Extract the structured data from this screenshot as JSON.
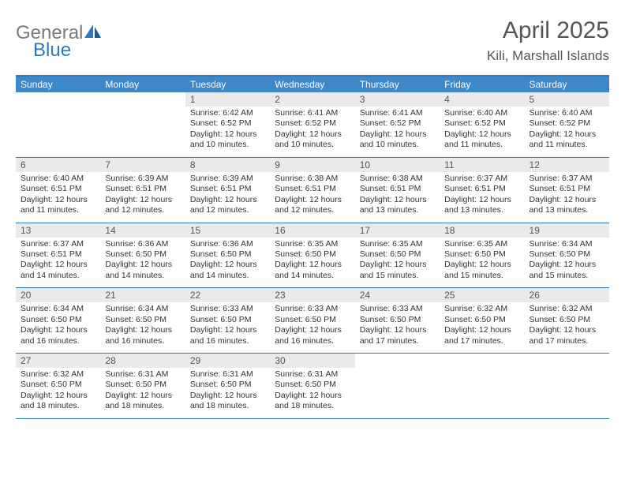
{
  "brand": {
    "part1": "General",
    "part2": "Blue"
  },
  "title": "April 2025",
  "subtitle": "Kili, Marshall Islands",
  "colors": {
    "header_bar": "#3d88c9",
    "border": "#2f78bf",
    "daynum_bg": "#eaeaea",
    "text": "#333333",
    "logo_gray": "#7a7a7a",
    "logo_blue": "#2f78bf"
  },
  "day_names": [
    "Sunday",
    "Monday",
    "Tuesday",
    "Wednesday",
    "Thursday",
    "Friday",
    "Saturday"
  ],
  "weeks": [
    [
      null,
      null,
      {
        "n": "1",
        "sr": "Sunrise: 6:42 AM",
        "ss": "Sunset: 6:52 PM",
        "dl": "Daylight: 12 hours and 10 minutes."
      },
      {
        "n": "2",
        "sr": "Sunrise: 6:41 AM",
        "ss": "Sunset: 6:52 PM",
        "dl": "Daylight: 12 hours and 10 minutes."
      },
      {
        "n": "3",
        "sr": "Sunrise: 6:41 AM",
        "ss": "Sunset: 6:52 PM",
        "dl": "Daylight: 12 hours and 10 minutes."
      },
      {
        "n": "4",
        "sr": "Sunrise: 6:40 AM",
        "ss": "Sunset: 6:52 PM",
        "dl": "Daylight: 12 hours and 11 minutes."
      },
      {
        "n": "5",
        "sr": "Sunrise: 6:40 AM",
        "ss": "Sunset: 6:52 PM",
        "dl": "Daylight: 12 hours and 11 minutes."
      }
    ],
    [
      {
        "n": "6",
        "sr": "Sunrise: 6:40 AM",
        "ss": "Sunset: 6:51 PM",
        "dl": "Daylight: 12 hours and 11 minutes."
      },
      {
        "n": "7",
        "sr": "Sunrise: 6:39 AM",
        "ss": "Sunset: 6:51 PM",
        "dl": "Daylight: 12 hours and 12 minutes."
      },
      {
        "n": "8",
        "sr": "Sunrise: 6:39 AM",
        "ss": "Sunset: 6:51 PM",
        "dl": "Daylight: 12 hours and 12 minutes."
      },
      {
        "n": "9",
        "sr": "Sunrise: 6:38 AM",
        "ss": "Sunset: 6:51 PM",
        "dl": "Daylight: 12 hours and 12 minutes."
      },
      {
        "n": "10",
        "sr": "Sunrise: 6:38 AM",
        "ss": "Sunset: 6:51 PM",
        "dl": "Daylight: 12 hours and 13 minutes."
      },
      {
        "n": "11",
        "sr": "Sunrise: 6:37 AM",
        "ss": "Sunset: 6:51 PM",
        "dl": "Daylight: 12 hours and 13 minutes."
      },
      {
        "n": "12",
        "sr": "Sunrise: 6:37 AM",
        "ss": "Sunset: 6:51 PM",
        "dl": "Daylight: 12 hours and 13 minutes."
      }
    ],
    [
      {
        "n": "13",
        "sr": "Sunrise: 6:37 AM",
        "ss": "Sunset: 6:51 PM",
        "dl": "Daylight: 12 hours and 14 minutes."
      },
      {
        "n": "14",
        "sr": "Sunrise: 6:36 AM",
        "ss": "Sunset: 6:50 PM",
        "dl": "Daylight: 12 hours and 14 minutes."
      },
      {
        "n": "15",
        "sr": "Sunrise: 6:36 AM",
        "ss": "Sunset: 6:50 PM",
        "dl": "Daylight: 12 hours and 14 minutes."
      },
      {
        "n": "16",
        "sr": "Sunrise: 6:35 AM",
        "ss": "Sunset: 6:50 PM",
        "dl": "Daylight: 12 hours and 14 minutes."
      },
      {
        "n": "17",
        "sr": "Sunrise: 6:35 AM",
        "ss": "Sunset: 6:50 PM",
        "dl": "Daylight: 12 hours and 15 minutes."
      },
      {
        "n": "18",
        "sr": "Sunrise: 6:35 AM",
        "ss": "Sunset: 6:50 PM",
        "dl": "Daylight: 12 hours and 15 minutes."
      },
      {
        "n": "19",
        "sr": "Sunrise: 6:34 AM",
        "ss": "Sunset: 6:50 PM",
        "dl": "Daylight: 12 hours and 15 minutes."
      }
    ],
    [
      {
        "n": "20",
        "sr": "Sunrise: 6:34 AM",
        "ss": "Sunset: 6:50 PM",
        "dl": "Daylight: 12 hours and 16 minutes."
      },
      {
        "n": "21",
        "sr": "Sunrise: 6:34 AM",
        "ss": "Sunset: 6:50 PM",
        "dl": "Daylight: 12 hours and 16 minutes."
      },
      {
        "n": "22",
        "sr": "Sunrise: 6:33 AM",
        "ss": "Sunset: 6:50 PM",
        "dl": "Daylight: 12 hours and 16 minutes."
      },
      {
        "n": "23",
        "sr": "Sunrise: 6:33 AM",
        "ss": "Sunset: 6:50 PM",
        "dl": "Daylight: 12 hours and 16 minutes."
      },
      {
        "n": "24",
        "sr": "Sunrise: 6:33 AM",
        "ss": "Sunset: 6:50 PM",
        "dl": "Daylight: 12 hours and 17 minutes."
      },
      {
        "n": "25",
        "sr": "Sunrise: 6:32 AM",
        "ss": "Sunset: 6:50 PM",
        "dl": "Daylight: 12 hours and 17 minutes."
      },
      {
        "n": "26",
        "sr": "Sunrise: 6:32 AM",
        "ss": "Sunset: 6:50 PM",
        "dl": "Daylight: 12 hours and 17 minutes."
      }
    ],
    [
      {
        "n": "27",
        "sr": "Sunrise: 6:32 AM",
        "ss": "Sunset: 6:50 PM",
        "dl": "Daylight: 12 hours and 18 minutes."
      },
      {
        "n": "28",
        "sr": "Sunrise: 6:31 AM",
        "ss": "Sunset: 6:50 PM",
        "dl": "Daylight: 12 hours and 18 minutes."
      },
      {
        "n": "29",
        "sr": "Sunrise: 6:31 AM",
        "ss": "Sunset: 6:50 PM",
        "dl": "Daylight: 12 hours and 18 minutes."
      },
      {
        "n": "30",
        "sr": "Sunrise: 6:31 AM",
        "ss": "Sunset: 6:50 PM",
        "dl": "Daylight: 12 hours and 18 minutes."
      },
      null,
      null,
      null
    ]
  ]
}
